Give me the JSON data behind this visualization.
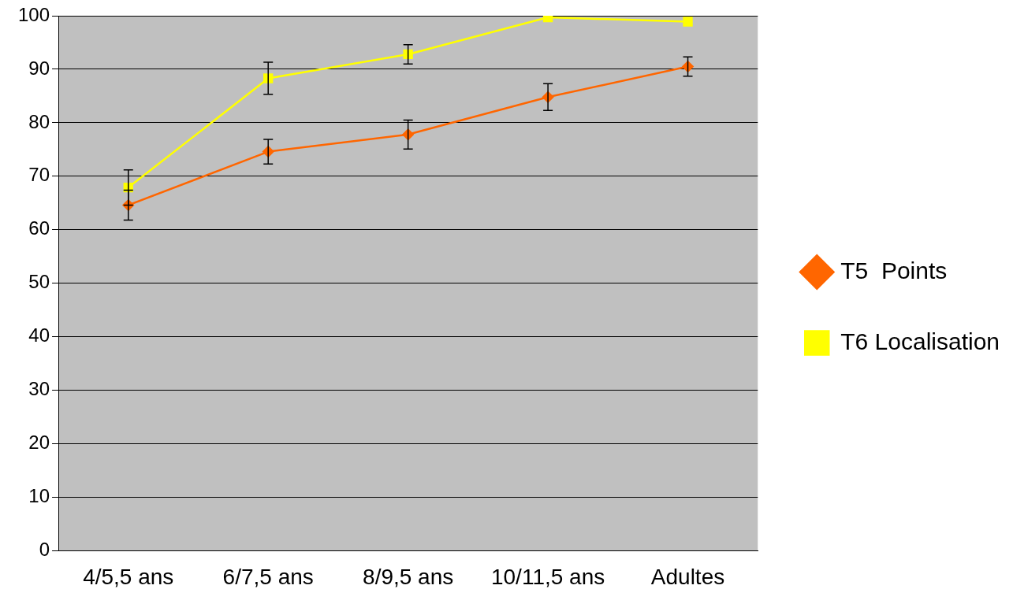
{
  "chart_data": {
    "type": "line",
    "categories": [
      "4/5,5 ans",
      "6/7,5 ans",
      "8/9,5 ans",
      "10/11,5 ans",
      "Adultes"
    ],
    "series": [
      {
        "name": "T5  Points",
        "color": "#ff6600",
        "marker": "diamond",
        "values": [
          64.6,
          74.6,
          77.8,
          84.8,
          90.5
        ],
        "errors": [
          2.8,
          2.3,
          2.7,
          2.5,
          1.8
        ]
      },
      {
        "name": "T6 Localisation",
        "color": "#ffff00",
        "marker": "square",
        "values": [
          67.9,
          88.3,
          92.8,
          99.7,
          98.9
        ],
        "errors": [
          3.3,
          3,
          1.8,
          null,
          null
        ]
      }
    ],
    "ylim": [
      0,
      100
    ],
    "yticks": [
      0,
      10,
      20,
      30,
      40,
      50,
      60,
      70,
      80,
      90,
      100
    ],
    "grid": "y",
    "legend": "right",
    "line_style": "solid"
  }
}
